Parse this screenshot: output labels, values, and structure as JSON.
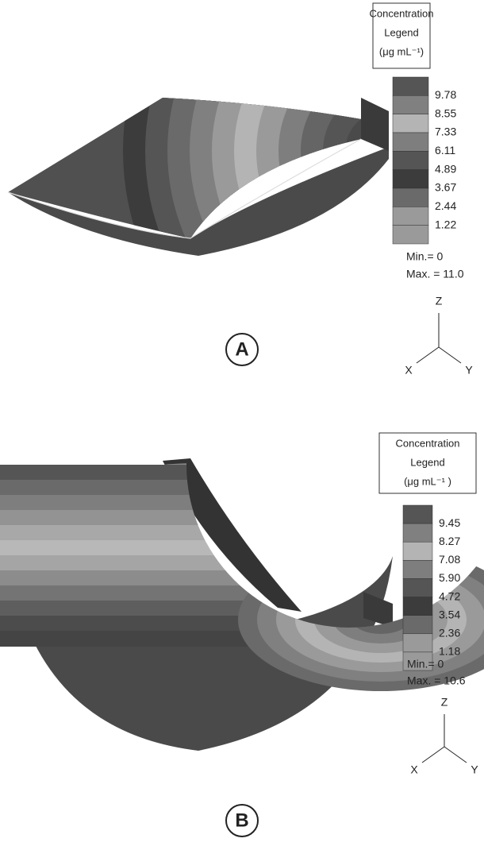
{
  "panels": [
    {
      "label": "A",
      "legend": {
        "title": [
          "Concentration",
          "Legend",
          "(μg mL⁻¹)"
        ],
        "levels": [
          "9.78",
          "8.55",
          "7.33",
          "6.11",
          "4.89",
          "3.67",
          "2.44",
          "1.22"
        ],
        "min": "Min.= 0",
        "max": "Max. = 11.0"
      },
      "axes": {
        "z": "Z",
        "x": "X",
        "y": "Y"
      }
    },
    {
      "label": "B",
      "legend": {
        "title": [
          "Concentration",
          "Legend",
          "(μg mL⁻¹ )"
        ],
        "levels": [
          "9.45",
          "8.27",
          "7.08",
          "5.90",
          "4.72",
          "3.54",
          "2.36",
          "1.18"
        ],
        "min": "Min.= 0",
        "max": "Max. = 10.6"
      },
      "axes": {
        "z": "Z",
        "x": "X",
        "y": "Y"
      }
    }
  ]
}
